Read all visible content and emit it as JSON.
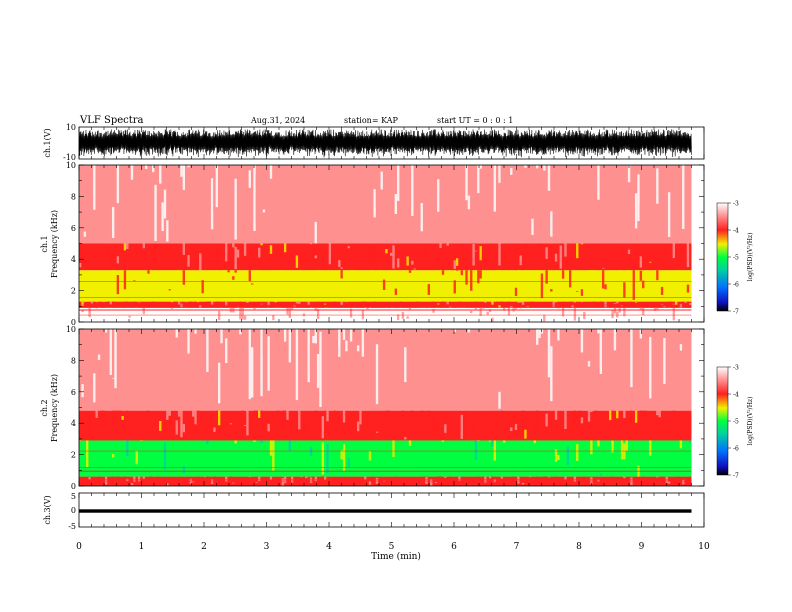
{
  "header": {
    "title": "VLF Spectra",
    "date": "Aug.31, 2024",
    "station": "station= KAP",
    "start": "start  UT  =   0  :  0  :  1"
  },
  "chart_data": [
    {
      "type": "line",
      "title": "",
      "ylabel": "ch.1(V)",
      "ylim": [
        -10,
        10
      ],
      "yticks": [
        "10",
        "-10"
      ],
      "xlim": [
        0,
        10
      ],
      "signal": "dense broadband waveform filling roughly -8 to 8 V"
    },
    {
      "type": "heatmap",
      "ylabel": "ch.1\nFrequency  (kHz)",
      "ylabel_line1": "ch.1",
      "ylabel_line2": "Frequency  (kHz)",
      "ylim": [
        0,
        10
      ],
      "yticks": [
        "0",
        "2",
        "4",
        "6",
        "8",
        "10"
      ],
      "xlim": [
        0,
        9.8
      ],
      "colorbar": {
        "label": "log(PSD)(V²/Hz)",
        "range": [
          -7,
          -3
        ],
        "ticks": [
          "-3",
          "-4",
          "-5",
          "-6",
          "-7"
        ]
      },
      "bands": [
        {
          "f_low": 0.0,
          "f_high": 0.9,
          "logpsd": -3.2
        },
        {
          "f_low": 0.9,
          "f_high": 1.3,
          "logpsd": -3.9
        },
        {
          "f_low": 1.3,
          "f_high": 3.3,
          "logpsd": -4.3
        },
        {
          "f_low": 3.3,
          "f_high": 5.0,
          "logpsd": -3.9
        },
        {
          "f_low": 5.0,
          "f_high": 10.0,
          "logpsd": -3.3
        }
      ]
    },
    {
      "type": "heatmap",
      "ylabel": "ch.2\nFrequency  (kHz)",
      "ylabel_line1": "ch.2",
      "ylabel_line2": "Frequency  (kHz)",
      "ylim": [
        0,
        10
      ],
      "yticks": [
        "0",
        "2",
        "4",
        "6",
        "8",
        "10"
      ],
      "xlim": [
        0,
        9.8
      ],
      "colorbar": {
        "label": "log(PSD)(V²/Hz)",
        "range": [
          -7,
          -3
        ],
        "ticks": [
          "-3",
          "-4",
          "-5",
          "-6",
          "-7"
        ]
      },
      "bands": [
        {
          "f_low": 0.0,
          "f_high": 0.6,
          "logpsd": -3.8
        },
        {
          "f_low": 0.6,
          "f_high": 2.9,
          "logpsd": -4.9
        },
        {
          "f_low": 2.9,
          "f_high": 4.8,
          "logpsd": -3.9
        },
        {
          "f_low": 4.8,
          "f_high": 10.0,
          "logpsd": -3.3
        }
      ]
    },
    {
      "type": "line",
      "ylabel": "ch.3(V)",
      "ylim": [
        -5,
        5
      ],
      "yticks": [
        "5",
        "0",
        "-5"
      ],
      "xlim": [
        0,
        10
      ],
      "signal": "narrow band near 0 V",
      "band": [
        -0.8,
        0.2
      ],
      "xlabel": "Time  (min)",
      "xticks": [
        "0",
        "1",
        "2",
        "3",
        "4",
        "5",
        "6",
        "7",
        "8",
        "9",
        "10"
      ]
    }
  ],
  "colors": {
    "background": "#ffffff",
    "trace": "#000000",
    "colormap": [
      "#000000",
      "#1010c0",
      "#0070ff",
      "#00d0a0",
      "#00ff40",
      "#f0f000",
      "#ff2020",
      "#ff9090",
      "#ffffff"
    ]
  }
}
